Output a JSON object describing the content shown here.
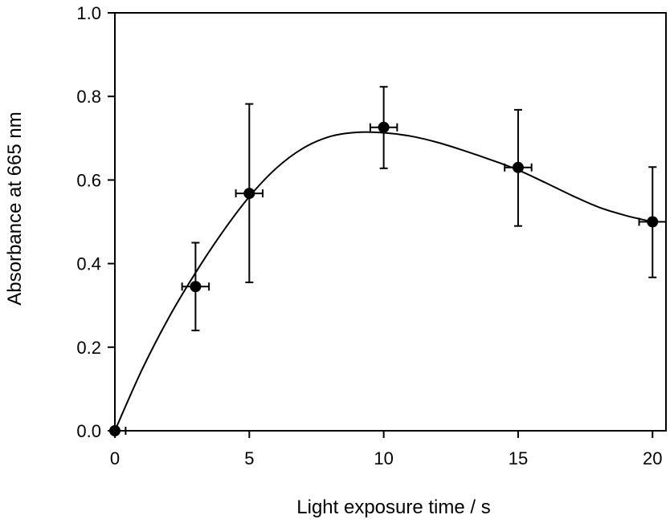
{
  "chart_data": {
    "type": "scatter",
    "title": "",
    "xlabel": "Light exposure time / s",
    "ylabel": "Absorbance at 665 nm",
    "xlim": [
      0,
      20.5
    ],
    "ylim": [
      0,
      1.0
    ],
    "x_ticks": [
      0,
      5,
      10,
      15,
      20
    ],
    "x_tick_labels": [
      "0",
      "5",
      "10",
      "15",
      "20"
    ],
    "y_ticks": [
      0.0,
      0.2,
      0.4,
      0.6,
      0.8,
      1.0
    ],
    "y_tick_labels": [
      "0.0",
      "0.2",
      "0.4",
      "0.6",
      "0.8",
      "1.0"
    ],
    "grid": false,
    "legend": "none",
    "points": [
      {
        "x": 0,
        "y": 0.0,
        "y_err_low": 0.0,
        "y_err_high": 0.0,
        "x_err": 0.4
      },
      {
        "x": 3,
        "y": 0.345,
        "y_err_low": 0.24,
        "y_err_high": 0.45,
        "x_err": 0.5
      },
      {
        "x": 5,
        "y": 0.568,
        "y_err_low": 0.355,
        "y_err_high": 0.782,
        "x_err": 0.5
      },
      {
        "x": 10,
        "y": 0.726,
        "y_err_low": 0.628,
        "y_err_high": 0.823,
        "x_err": 0.5
      },
      {
        "x": 15,
        "y": 0.63,
        "y_err_low": 0.49,
        "y_err_high": 0.768,
        "x_err": 0.5
      },
      {
        "x": 20,
        "y": 0.5,
        "y_err_low": 0.367,
        "y_err_high": 0.631,
        "x_err": 0.5
      }
    ],
    "fit_curve": {
      "x": [
        0,
        1,
        2,
        3,
        4,
        5,
        6,
        7,
        8,
        9,
        10,
        11,
        12,
        13,
        14,
        15,
        16,
        17,
        18,
        19,
        20
      ],
      "y": [
        0.0,
        0.145,
        0.27,
        0.378,
        0.475,
        0.56,
        0.628,
        0.676,
        0.704,
        0.714,
        0.713,
        0.705,
        0.69,
        0.67,
        0.648,
        0.624,
        0.594,
        0.563,
        0.535,
        0.515,
        0.5
      ]
    },
    "colors": {
      "marker": "#000000",
      "line": "#000000",
      "axis": "#000000"
    }
  }
}
